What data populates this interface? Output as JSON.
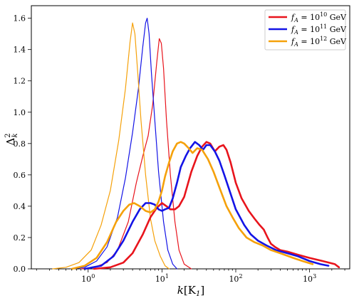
{
  "chart_data": {
    "type": "line",
    "xlabel_main": "k",
    "xlabel_unit": "[K",
    "xlabel_unit_sub": "1",
    "xlabel_close": "]",
    "ylabel_main": "Δ",
    "ylabel_sup": "2",
    "ylabel_sub": "k",
    "xscale": "log",
    "xlim": [
      0.17,
      3500
    ],
    "ylim": [
      0,
      1.68
    ],
    "x_ticks": [
      {
        "value": 1,
        "base": "10",
        "exp": "0"
      },
      {
        "value": 10,
        "base": "10",
        "exp": "1"
      },
      {
        "value": 100,
        "base": "10",
        "exp": "2"
      },
      {
        "value": 1000,
        "base": "10",
        "exp": "3"
      }
    ],
    "y_ticks": [
      "0.0",
      "0.2",
      "0.4",
      "0.6",
      "0.8",
      "1.0",
      "1.2",
      "1.4",
      "1.6"
    ],
    "legend_position": "top-right",
    "grid": false,
    "series": [
      {
        "name_prefix": "f",
        "name_sub": "A",
        "name_mid": " = 10",
        "name_sup": "10",
        "name_unit": " GeV",
        "color": "#e8141c",
        "width": "thin",
        "x": [
          0.8,
          1.2,
          1.8,
          2.5,
          3.5,
          4.5,
          5.5,
          6.5,
          7.5,
          8.5,
          9.2,
          9.8,
          10.5,
          11.5,
          13,
          15,
          17,
          20,
          25
        ],
        "y": [
          0.0,
          0.01,
          0.04,
          0.12,
          0.3,
          0.55,
          0.72,
          0.85,
          1.05,
          1.32,
          1.47,
          1.44,
          1.28,
          0.95,
          0.6,
          0.3,
          0.12,
          0.03,
          0.0
        ]
      },
      {
        "name_prefix": "f",
        "name_sub": "A",
        "name_mid": " = 10",
        "name_sup": "11",
        "name_unit": " GeV",
        "color": "#1414e6",
        "width": "thin",
        "x": [
          0.6,
          0.9,
          1.3,
          1.8,
          2.5,
          3.2,
          4.0,
          4.8,
          5.5,
          6.0,
          6.3,
          6.7,
          7.2,
          8.0,
          9.0,
          10.5,
          12,
          14,
          16
        ],
        "y": [
          0.0,
          0.01,
          0.05,
          0.14,
          0.33,
          0.58,
          0.87,
          1.15,
          1.42,
          1.57,
          1.6,
          1.5,
          1.25,
          0.95,
          0.62,
          0.3,
          0.12,
          0.03,
          0.0
        ]
      },
      {
        "name_prefix": "f",
        "name_sub": "A",
        "name_mid": " = 10",
        "name_sup": "12",
        "name_unit": " GeV",
        "color": "#f5a10a",
        "width": "thin",
        "x": [
          0.33,
          0.5,
          0.75,
          1.1,
          1.5,
          2.0,
          2.6,
          3.2,
          3.7,
          4.0,
          4.3,
          4.7,
          5.2,
          6.0,
          7.0,
          8.0,
          9.5,
          11,
          12.5
        ],
        "y": [
          0.0,
          0.01,
          0.04,
          0.12,
          0.28,
          0.5,
          0.82,
          1.15,
          1.45,
          1.57,
          1.5,
          1.25,
          0.95,
          0.6,
          0.32,
          0.18,
          0.08,
          0.02,
          0.0
        ]
      },
      {
        "name_prefix": "",
        "color": "#e8141c",
        "width": "thick",
        "x": [
          1.2,
          2.0,
          3.0,
          4.0,
          5.5,
          7.0,
          8.5,
          10,
          11.5,
          13,
          15,
          17,
          20,
          25,
          30,
          35,
          40,
          45,
          52,
          60,
          68,
          75,
          85,
          100,
          120,
          150,
          180,
          210,
          240,
          270,
          300,
          340,
          400,
          500,
          700,
          1000,
          1500,
          2200,
          2500
        ],
        "y": [
          0.0,
          0.01,
          0.04,
          0.1,
          0.22,
          0.33,
          0.39,
          0.42,
          0.4,
          0.38,
          0.38,
          0.4,
          0.46,
          0.62,
          0.72,
          0.78,
          0.81,
          0.8,
          0.75,
          0.78,
          0.79,
          0.76,
          0.68,
          0.55,
          0.45,
          0.37,
          0.32,
          0.28,
          0.25,
          0.2,
          0.16,
          0.14,
          0.12,
          0.11,
          0.09,
          0.07,
          0.05,
          0.03,
          0.01
        ]
      },
      {
        "name_prefix": "",
        "color": "#1414e6",
        "width": "thick",
        "x": [
          0.9,
          1.5,
          2.2,
          3.0,
          4.0,
          5.0,
          6.0,
          7.0,
          8.0,
          9.0,
          10,
          11,
          12.5,
          14,
          16,
          18,
          21,
          24,
          28,
          32,
          36,
          40,
          45,
          52,
          60,
          70,
          85,
          100,
          130,
          160,
          200,
          260,
          350,
          500,
          700,
          1000,
          1400,
          1800
        ],
        "y": [
          0.0,
          0.02,
          0.08,
          0.18,
          0.3,
          0.38,
          0.42,
          0.42,
          0.41,
          0.38,
          0.37,
          0.38,
          0.39,
          0.45,
          0.55,
          0.65,
          0.72,
          0.77,
          0.81,
          0.79,
          0.76,
          0.79,
          0.79,
          0.75,
          0.69,
          0.6,
          0.48,
          0.38,
          0.28,
          0.22,
          0.18,
          0.15,
          0.12,
          0.1,
          0.08,
          0.05,
          0.03,
          0.02
        ]
      },
      {
        "name_prefix": "",
        "color": "#f5a10a",
        "width": "thick",
        "x": [
          0.6,
          0.9,
          1.3,
          1.8,
          2.4,
          3.0,
          3.6,
          4.2,
          5.0,
          6.0,
          7.0,
          8.0,
          9.0,
          10,
          11,
          12.5,
          14,
          16,
          18,
          20,
          23,
          26,
          30,
          35,
          42,
          50,
          60,
          75,
          90,
          110,
          140,
          180,
          230,
          300,
          400,
          600,
          800,
          1100
        ],
        "y": [
          0.0,
          0.02,
          0.07,
          0.17,
          0.3,
          0.37,
          0.41,
          0.42,
          0.4,
          0.37,
          0.36,
          0.38,
          0.43,
          0.5,
          0.59,
          0.68,
          0.75,
          0.8,
          0.81,
          0.8,
          0.77,
          0.74,
          0.77,
          0.76,
          0.7,
          0.62,
          0.52,
          0.4,
          0.33,
          0.26,
          0.2,
          0.17,
          0.15,
          0.12,
          0.1,
          0.07,
          0.05,
          0.03
        ]
      }
    ]
  }
}
